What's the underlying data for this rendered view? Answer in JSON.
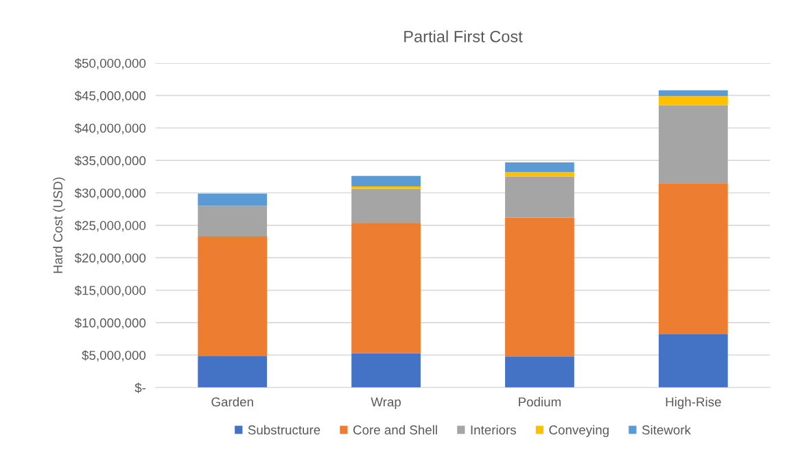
{
  "chart_data": {
    "type": "bar",
    "title": "Partial First Cost",
    "ylabel": "Hard Cost (USD)",
    "categories": [
      "Garden",
      "Wrap",
      "Podium",
      "High-Rise"
    ],
    "stacked": true,
    "series": [
      {
        "name": "Substructure",
        "color": "#4472c4",
        "values": [
          4900000,
          5300000,
          4800000,
          8200000
        ]
      },
      {
        "name": "Core and Shell",
        "color": "#ed7d31",
        "values": [
          18400000,
          20000000,
          21400000,
          23300000
        ]
      },
      {
        "name": "Interiors",
        "color": "#a5a5a5",
        "values": [
          4700000,
          5300000,
          6300000,
          12000000
        ]
      },
      {
        "name": "Conveying",
        "color": "#ffc000",
        "values": [
          0,
          400000,
          700000,
          1400000
        ]
      },
      {
        "name": "Sitework",
        "color": "#5b9bd5",
        "values": [
          1900000,
          1600000,
          1500000,
          900000
        ]
      }
    ],
    "ylim": [
      0,
      50000000
    ],
    "yticks": [
      {
        "value": 0,
        "label": "$-"
      },
      {
        "value": 5000000,
        "label": "$5,000,000"
      },
      {
        "value": 10000000,
        "label": "$10,000,000"
      },
      {
        "value": 15000000,
        "label": "$15,000,000"
      },
      {
        "value": 20000000,
        "label": "$20,000,000"
      },
      {
        "value": 25000000,
        "label": "$25,000,000"
      },
      {
        "value": 30000000,
        "label": "$30,000,000"
      },
      {
        "value": 35000000,
        "label": "$35,000,000"
      },
      {
        "value": 40000000,
        "label": "$40,000,000"
      },
      {
        "value": 45000000,
        "label": "$45,000,000"
      },
      {
        "value": 50000000,
        "label": "$50,000,000"
      }
    ],
    "grid": "y",
    "legend": "bottom"
  }
}
